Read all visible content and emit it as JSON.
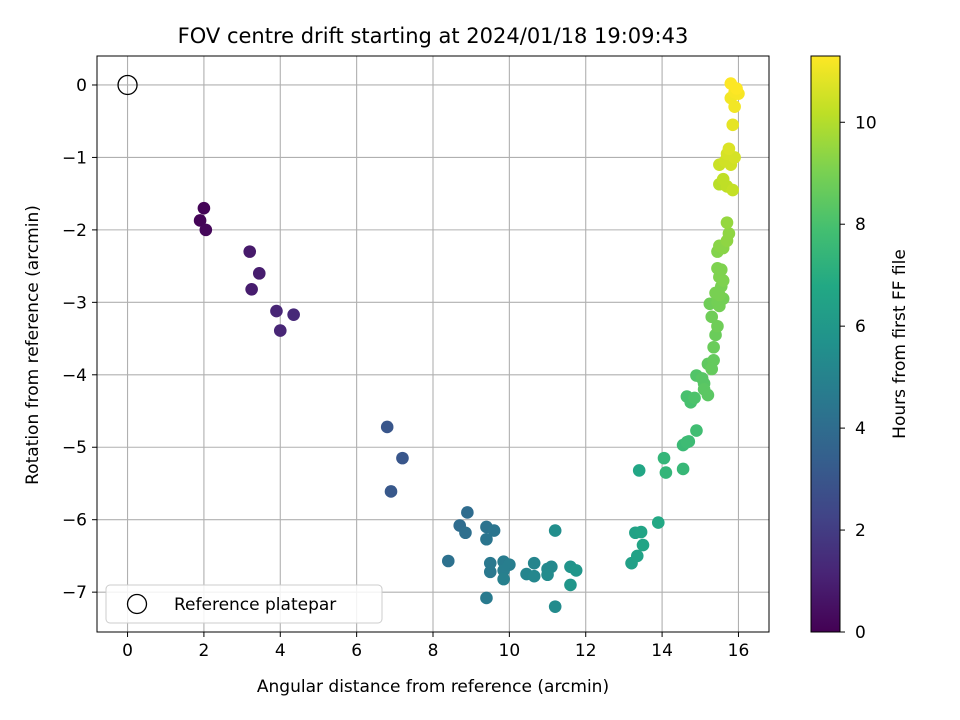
{
  "chart_data": {
    "type": "scatter",
    "title": "FOV centre drift starting at 2024/01/18 19:09:43",
    "xlabel": "Angular distance from reference (arcmin)",
    "ylabel": "Rotation from reference (arcmin)",
    "xlim": [
      -0.8,
      16.8
    ],
    "ylim": [
      -7.55,
      0.4
    ],
    "x_ticks": [
      0,
      2,
      4,
      6,
      8,
      10,
      12,
      14,
      16
    ],
    "y_ticks": [
      0,
      -1,
      -2,
      -3,
      -4,
      -5,
      -6,
      -7
    ],
    "grid": true,
    "legend": {
      "location": "lower-left",
      "entries": [
        "Reference platepar"
      ]
    },
    "reference_point": {
      "x": 0,
      "y": 0,
      "label": "Reference platepar"
    },
    "colorbar": {
      "label": "Hours from first FF file",
      "colormap": "viridis",
      "range": [
        0,
        11.3
      ],
      "ticks": [
        0,
        2,
        4,
        6,
        8,
        10
      ]
    },
    "points": [
      {
        "x": 2.0,
        "y": -1.7,
        "c": 0.1
      },
      {
        "x": 1.9,
        "y": -1.87,
        "c": 0.1
      },
      {
        "x": 2.05,
        "y": -2.0,
        "c": 0.2
      },
      {
        "x": 3.2,
        "y": -2.3,
        "c": 0.8
      },
      {
        "x": 3.45,
        "y": -2.6,
        "c": 0.9
      },
      {
        "x": 3.25,
        "y": -2.82,
        "c": 0.9
      },
      {
        "x": 3.9,
        "y": -3.12,
        "c": 1.2
      },
      {
        "x": 4.35,
        "y": -3.17,
        "c": 1.3
      },
      {
        "x": 4.0,
        "y": -3.39,
        "c": 1.2
      },
      {
        "x": 6.8,
        "y": -4.72,
        "c": 3.0
      },
      {
        "x": 7.2,
        "y": -5.15,
        "c": 3.0
      },
      {
        "x": 6.9,
        "y": -5.61,
        "c": 3.1
      },
      {
        "x": 8.9,
        "y": -5.9,
        "c": 4.0
      },
      {
        "x": 8.7,
        "y": -6.08,
        "c": 4.0
      },
      {
        "x": 8.85,
        "y": -6.18,
        "c": 4.1
      },
      {
        "x": 8.4,
        "y": -6.57,
        "c": 4.2
      },
      {
        "x": 9.4,
        "y": -6.1,
        "c": 4.3
      },
      {
        "x": 9.6,
        "y": -6.15,
        "c": 4.4
      },
      {
        "x": 9.4,
        "y": -6.27,
        "c": 4.4
      },
      {
        "x": 9.5,
        "y": -6.6,
        "c": 4.5
      },
      {
        "x": 9.5,
        "y": -6.72,
        "c": 4.5
      },
      {
        "x": 9.4,
        "y": -7.08,
        "c": 4.6
      },
      {
        "x": 9.85,
        "y": -6.58,
        "c": 4.7
      },
      {
        "x": 10.0,
        "y": -6.62,
        "c": 4.8
      },
      {
        "x": 9.85,
        "y": -6.7,
        "c": 4.8
      },
      {
        "x": 9.85,
        "y": -6.82,
        "c": 4.9
      },
      {
        "x": 10.45,
        "y": -6.75,
        "c": 5.1
      },
      {
        "x": 10.65,
        "y": -6.6,
        "c": 5.1
      },
      {
        "x": 10.65,
        "y": -6.78,
        "c": 5.2
      },
      {
        "x": 11.1,
        "y": -6.65,
        "c": 5.3
      },
      {
        "x": 11.0,
        "y": -6.68,
        "c": 5.3
      },
      {
        "x": 11.0,
        "y": -6.76,
        "c": 5.4
      },
      {
        "x": 11.2,
        "y": -6.15,
        "c": 5.5
      },
      {
        "x": 11.2,
        "y": -7.2,
        "c": 5.4
      },
      {
        "x": 11.6,
        "y": -6.65,
        "c": 5.8
      },
      {
        "x": 11.75,
        "y": -6.7,
        "c": 5.9
      },
      {
        "x": 11.6,
        "y": -6.9,
        "c": 5.9
      },
      {
        "x": 13.2,
        "y": -6.6,
        "c": 6.4
      },
      {
        "x": 13.3,
        "y": -6.18,
        "c": 6.5
      },
      {
        "x": 13.35,
        "y": -6.5,
        "c": 6.5
      },
      {
        "x": 13.45,
        "y": -6.17,
        "c": 6.6
      },
      {
        "x": 13.5,
        "y": -6.35,
        "c": 6.6
      },
      {
        "x": 13.4,
        "y": -5.32,
        "c": 6.7
      },
      {
        "x": 13.9,
        "y": -6.04,
        "c": 6.8
      },
      {
        "x": 14.05,
        "y": -5.15,
        "c": 7.4
      },
      {
        "x": 14.1,
        "y": -5.35,
        "c": 7.4
      },
      {
        "x": 14.55,
        "y": -5.3,
        "c": 7.5
      },
      {
        "x": 14.55,
        "y": -4.97,
        "c": 7.6
      },
      {
        "x": 14.7,
        "y": -4.92,
        "c": 7.7
      },
      {
        "x": 14.65,
        "y": -4.93,
        "c": 7.7
      },
      {
        "x": 14.9,
        "y": -4.77,
        "c": 7.8
      },
      {
        "x": 14.65,
        "y": -4.3,
        "c": 8.0
      },
      {
        "x": 14.75,
        "y": -4.38,
        "c": 8.0
      },
      {
        "x": 14.85,
        "y": -4.32,
        "c": 8.1
      },
      {
        "x": 14.9,
        "y": -4.01,
        "c": 8.2
      },
      {
        "x": 15.05,
        "y": -4.05,
        "c": 8.3
      },
      {
        "x": 15.1,
        "y": -4.12,
        "c": 8.3
      },
      {
        "x": 15.1,
        "y": -4.2,
        "c": 8.4
      },
      {
        "x": 15.2,
        "y": -4.28,
        "c": 8.4
      },
      {
        "x": 15.2,
        "y": -3.85,
        "c": 8.5
      },
      {
        "x": 15.35,
        "y": -3.8,
        "c": 8.6
      },
      {
        "x": 15.3,
        "y": -3.92,
        "c": 8.6
      },
      {
        "x": 15.35,
        "y": -3.62,
        "c": 8.7
      },
      {
        "x": 15.4,
        "y": -3.45,
        "c": 8.7
      },
      {
        "x": 15.45,
        "y": -3.33,
        "c": 8.8
      },
      {
        "x": 15.3,
        "y": -3.2,
        "c": 8.8
      },
      {
        "x": 15.25,
        "y": -3.02,
        "c": 8.8
      },
      {
        "x": 15.45,
        "y": -3.0,
        "c": 8.9
      },
      {
        "x": 15.5,
        "y": -3.05,
        "c": 8.9
      },
      {
        "x": 15.6,
        "y": -2.95,
        "c": 8.9
      },
      {
        "x": 15.4,
        "y": -2.87,
        "c": 9.0
      },
      {
        "x": 15.5,
        "y": -2.9,
        "c": 9.0
      },
      {
        "x": 15.55,
        "y": -2.78,
        "c": 9.0
      },
      {
        "x": 15.5,
        "y": -2.65,
        "c": 9.1
      },
      {
        "x": 15.6,
        "y": -2.7,
        "c": 9.1
      },
      {
        "x": 15.45,
        "y": -2.53,
        "c": 9.1
      },
      {
        "x": 15.55,
        "y": -2.55,
        "c": 9.1
      },
      {
        "x": 15.45,
        "y": -2.3,
        "c": 9.2
      },
      {
        "x": 15.5,
        "y": -2.22,
        "c": 9.3
      },
      {
        "x": 15.6,
        "y": -2.25,
        "c": 9.3
      },
      {
        "x": 15.7,
        "y": -2.15,
        "c": 9.4
      },
      {
        "x": 15.75,
        "y": -2.05,
        "c": 9.4
      },
      {
        "x": 15.7,
        "y": -1.9,
        "c": 9.5
      },
      {
        "x": 15.5,
        "y": -1.37,
        "c": 10.1
      },
      {
        "x": 15.6,
        "y": -1.3,
        "c": 10.2
      },
      {
        "x": 15.7,
        "y": -1.4,
        "c": 10.2
      },
      {
        "x": 15.85,
        "y": -1.45,
        "c": 10.3
      },
      {
        "x": 15.5,
        "y": -1.1,
        "c": 10.4
      },
      {
        "x": 15.65,
        "y": -1.05,
        "c": 10.5
      },
      {
        "x": 15.8,
        "y": -1.1,
        "c": 10.5
      },
      {
        "x": 15.7,
        "y": -0.95,
        "c": 10.6
      },
      {
        "x": 15.9,
        "y": -1.0,
        "c": 10.6
      },
      {
        "x": 15.75,
        "y": -0.88,
        "c": 10.7
      },
      {
        "x": 15.85,
        "y": -0.55,
        "c": 10.9
      },
      {
        "x": 15.8,
        "y": -0.18,
        "c": 11.1
      },
      {
        "x": 15.9,
        "y": -0.3,
        "c": 11.1
      },
      {
        "x": 15.9,
        "y": -0.1,
        "c": 11.2
      },
      {
        "x": 16.0,
        "y": -0.12,
        "c": 11.2
      },
      {
        "x": 15.8,
        "y": 0.02,
        "c": 11.3
      },
      {
        "x": 15.95,
        "y": -0.05,
        "c": 11.3
      }
    ]
  }
}
